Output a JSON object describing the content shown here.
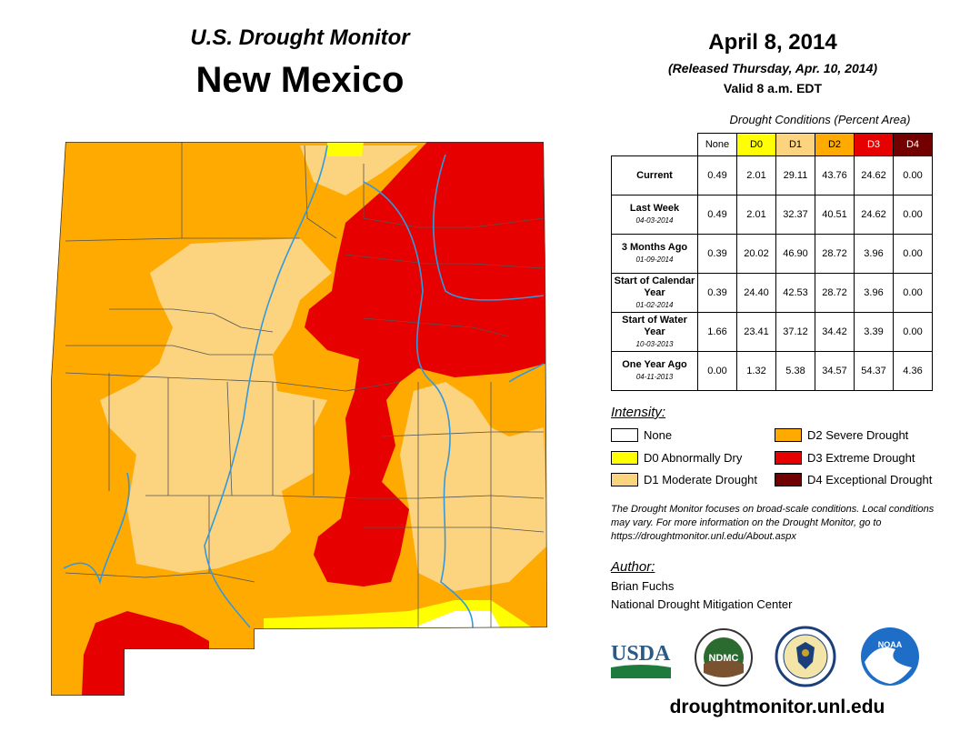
{
  "header": {
    "subtitle": "U.S. Drought Monitor",
    "state": "New Mexico",
    "date": "April 8, 2014",
    "released": "(Released Thursday, Apr. 10, 2014)",
    "valid": "Valid 8 a.m. EDT"
  },
  "table": {
    "caption": "Drought Conditions (Percent Area)",
    "columns": [
      "None",
      "D0",
      "D1",
      "D2",
      "D3",
      "D4"
    ],
    "column_colors": [
      "#ffffff",
      "#ffff00",
      "#fcd37f",
      "#ffaa00",
      "#e60000",
      "#730000"
    ],
    "rows": [
      {
        "label": "Current",
        "date": "",
        "values": [
          "0.49",
          "2.01",
          "29.11",
          "43.76",
          "24.62",
          "0.00"
        ]
      },
      {
        "label": "Last Week",
        "date": "04-03-2014",
        "values": [
          "0.49",
          "2.01",
          "32.37",
          "40.51",
          "24.62",
          "0.00"
        ]
      },
      {
        "label": "3 Months Ago",
        "date": "01-09-2014",
        "values": [
          "0.39",
          "20.02",
          "46.90",
          "28.72",
          "3.96",
          "0.00"
        ]
      },
      {
        "label": "Start of Calendar Year",
        "date": "01-02-2014",
        "values": [
          "0.39",
          "24.40",
          "42.53",
          "28.72",
          "3.96",
          "0.00"
        ]
      },
      {
        "label": "Start of Water Year",
        "date": "10-03-2013",
        "values": [
          "1.66",
          "23.41",
          "37.12",
          "34.42",
          "3.39",
          "0.00"
        ]
      },
      {
        "label": "One Year Ago",
        "date": "04-11-2013",
        "values": [
          "0.00",
          "1.32",
          "5.38",
          "34.57",
          "54.37",
          "4.36"
        ]
      }
    ]
  },
  "legend": {
    "title": "Intensity:",
    "items": [
      {
        "label": "None",
        "color": "#ffffff"
      },
      {
        "label": "D0 Abnormally Dry",
        "color": "#ffff00"
      },
      {
        "label": "D1 Moderate Drought",
        "color": "#fcd37f"
      },
      {
        "label": "D2 Severe Drought",
        "color": "#ffaa00"
      },
      {
        "label": "D3 Extreme Drought",
        "color": "#e60000"
      },
      {
        "label": "D4 Exceptional Drought",
        "color": "#730000"
      }
    ]
  },
  "note": "The Drought Monitor focuses on broad-scale conditions. Local conditions may vary. For more information on the Drought Monitor, go to https://droughtmonitor.unl.edu/About.aspx",
  "author": {
    "title": "Author:",
    "name": "Brian Fuchs",
    "org": "National Drought Mitigation Center"
  },
  "logos": {
    "usda": "USDA",
    "ndmc": "NDMC",
    "noaa": "NOAA"
  },
  "footer_url": "droughtmonitor.unl.edu"
}
